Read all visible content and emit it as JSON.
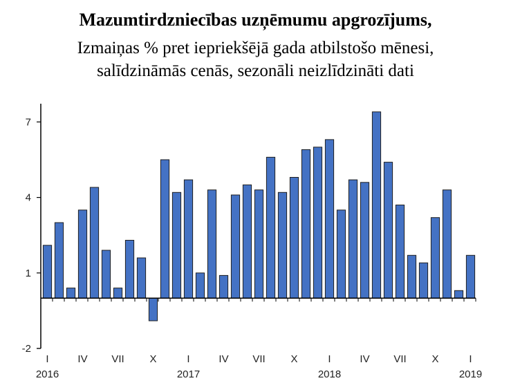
{
  "chart_data": {
    "type": "bar",
    "title": "Mazumtirdzniecības uzņēmumu apgrozījums,",
    "subtitle_line1": "Izmaiņas % pret iepriekšējā gada atbilstošo mēnesi,",
    "subtitle_line2": "salīdzināmās cenās, sezonāli neizlīdzināti dati",
    "ylim": [
      -2,
      8
    ],
    "yticks": [
      "7",
      "4",
      "1",
      "-2"
    ],
    "ytick_values": [
      7,
      4,
      1,
      -2
    ],
    "x_month_labels": [
      "I",
      "IV",
      "VII",
      "X",
      "I",
      "IV",
      "VII",
      "X",
      "I",
      "IV",
      "VII",
      "X",
      "I"
    ],
    "x_month_label_index": [
      0,
      3,
      6,
      9,
      12,
      15,
      18,
      21,
      24,
      27,
      30,
      33,
      36
    ],
    "x_year_labels": [
      "2016",
      "2017",
      "2018",
      "2019"
    ],
    "x_year_label_index": [
      0,
      12,
      24,
      36
    ],
    "categories": [
      "2016-01",
      "2016-02",
      "2016-03",
      "2016-04",
      "2016-05",
      "2016-06",
      "2016-07",
      "2016-08",
      "2016-09",
      "2016-10",
      "2016-11",
      "2016-12",
      "2017-01",
      "2017-02",
      "2017-03",
      "2017-04",
      "2017-05",
      "2017-06",
      "2017-07",
      "2017-08",
      "2017-09",
      "2017-10",
      "2017-11",
      "2017-12",
      "2018-01",
      "2018-02",
      "2018-03",
      "2018-04",
      "2018-05",
      "2018-06",
      "2018-07",
      "2018-08",
      "2018-09",
      "2018-10",
      "2018-11",
      "2018-12",
      "2019-01"
    ],
    "values": [
      2.1,
      3.0,
      0.4,
      3.5,
      4.4,
      1.9,
      0.4,
      2.3,
      1.6,
      -0.9,
      5.5,
      4.2,
      4.7,
      1.0,
      4.3,
      0.9,
      4.1,
      4.5,
      4.3,
      5.6,
      4.2,
      4.8,
      5.9,
      6.0,
      6.3,
      3.5,
      4.7,
      4.6,
      7.4,
      5.4,
      3.7,
      1.7,
      1.4,
      3.2,
      4.3,
      0.3,
      1.7
    ],
    "colors": {
      "bar": "#4472c4",
      "bar_stroke": "#1f1f1f",
      "axis": "#000000"
    },
    "grid": false,
    "legend": "none"
  }
}
